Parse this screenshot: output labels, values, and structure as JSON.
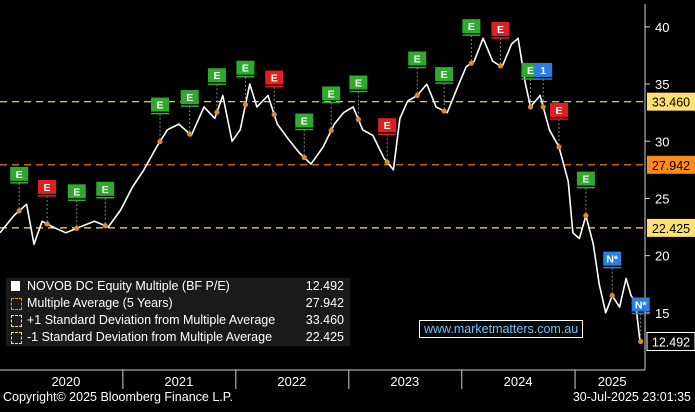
{
  "chart_data": {
    "type": "line",
    "title": "",
    "xlabel": "",
    "ylabel": "",
    "ylim": [
      10,
      42
    ],
    "y_ticks": [
      15,
      20,
      25,
      30,
      35,
      40
    ],
    "x_range": [
      "2019-12-01",
      "2025-08-15"
    ],
    "x_tick_labels": [
      {
        "label": "2020",
        "date": "2020-07-01"
      },
      {
        "label": "2021",
        "date": "2021-07-01"
      },
      {
        "label": "2022",
        "date": "2022-07-01"
      },
      {
        "label": "2023",
        "date": "2023-07-01"
      },
      {
        "label": "2024",
        "date": "2024-07-01"
      },
      {
        "label": "2025",
        "date": "2025-05-01"
      }
    ],
    "year_boundaries": [
      "2021-01-01",
      "2022-01-01",
      "2023-01-01",
      "2024-01-01",
      "2025-01-01"
    ],
    "grid": false,
    "legend_position": "bottom-left",
    "series": [
      {
        "name": "NOVOB DC Equity Multiple (BF P/E)",
        "color": "#ffffff",
        "last_value": "12.492",
        "points": [
          [
            "2019-12-01",
            22.0
          ],
          [
            "2020-01-15",
            23.5
          ],
          [
            "2020-02-25",
            24.5
          ],
          [
            "2020-03-20",
            21.0
          ],
          [
            "2020-04-15",
            23.0
          ],
          [
            "2020-05-20",
            22.5
          ],
          [
            "2020-07-01",
            22.0
          ],
          [
            "2020-08-15",
            22.5
          ],
          [
            "2020-10-01",
            23.0
          ],
          [
            "2020-11-15",
            22.5
          ],
          [
            "2020-12-25",
            24.0
          ],
          [
            "2021-02-01",
            26.0
          ],
          [
            "2021-03-10",
            27.5
          ],
          [
            "2021-04-20",
            29.5
          ],
          [
            "2021-05-25",
            31.0
          ],
          [
            "2021-07-01",
            31.5
          ],
          [
            "2021-08-10",
            30.5
          ],
          [
            "2021-09-20",
            33.0
          ],
          [
            "2021-10-25",
            32.0
          ],
          [
            "2021-11-20",
            34.0
          ],
          [
            "2021-12-20",
            30.0
          ],
          [
            "2022-01-15",
            31.0
          ],
          [
            "2022-02-15",
            35.0
          ],
          [
            "2022-03-10",
            33.0
          ],
          [
            "2022-04-15",
            34.0
          ],
          [
            "2022-05-15",
            31.5
          ],
          [
            "2022-06-25",
            30.0
          ],
          [
            "2022-07-25",
            29.0
          ],
          [
            "2022-09-01",
            28.0
          ],
          [
            "2022-10-10",
            29.5
          ],
          [
            "2022-11-15",
            31.5
          ],
          [
            "2022-12-15",
            32.5
          ],
          [
            "2023-01-15",
            33.0
          ],
          [
            "2023-02-15",
            31.0
          ],
          [
            "2023-03-20",
            30.5
          ],
          [
            "2023-04-25",
            28.5
          ],
          [
            "2023-05-25",
            27.5
          ],
          [
            "2023-06-15",
            32.0
          ],
          [
            "2023-07-10",
            33.5
          ],
          [
            "2023-08-10",
            34.0
          ],
          [
            "2023-09-10",
            35.0
          ],
          [
            "2023-10-10",
            33.0
          ],
          [
            "2023-11-15",
            32.5
          ],
          [
            "2023-12-15",
            34.5
          ],
          [
            "2024-01-15",
            36.5
          ],
          [
            "2024-02-10",
            37.0
          ],
          [
            "2024-03-10",
            39.0
          ],
          [
            "2024-04-10",
            37.0
          ],
          [
            "2024-05-10",
            36.5
          ],
          [
            "2024-06-10",
            38.5
          ],
          [
            "2024-07-01",
            39.0
          ],
          [
            "2024-07-25",
            35.0
          ],
          [
            "2024-08-10",
            33.0
          ],
          [
            "2024-09-10",
            34.0
          ],
          [
            "2024-10-10",
            31.0
          ],
          [
            "2024-11-10",
            29.5
          ],
          [
            "2024-12-10",
            26.5
          ],
          [
            "2024-12-25",
            22.0
          ],
          [
            "2025-01-15",
            21.5
          ],
          [
            "2025-02-05",
            23.5
          ],
          [
            "2025-03-01",
            21.0
          ],
          [
            "2025-03-20",
            17.5
          ],
          [
            "2025-04-10",
            15.0
          ],
          [
            "2025-05-01",
            16.5
          ],
          [
            "2025-05-25",
            15.5
          ],
          [
            "2025-06-15",
            18.0
          ],
          [
            "2025-07-01",
            16.5
          ],
          [
            "2025-07-15",
            16.0
          ],
          [
            "2025-07-30",
            12.492
          ]
        ]
      },
      {
        "name": "Multiple Average (5 Years)",
        "color": "#ff8a1c",
        "value": 27.942,
        "value_label": "27.942"
      },
      {
        "name": "+1 Standard Deviation from Multiple Average",
        "color": "#ffe070",
        "value": 33.46,
        "value_label": "33.460"
      },
      {
        "name": "-1 Standard Deviation from Multiple Average",
        "color": "#ffe070",
        "value": 22.425,
        "value_label": "22.425"
      }
    ],
    "event_markers": [
      {
        "label": "E",
        "color": "#2faa2f",
        "date": "2020-02-01"
      },
      {
        "label": "E",
        "color": "#e02020",
        "date": "2020-05-01"
      },
      {
        "label": "E",
        "color": "#2faa2f",
        "date": "2020-08-05"
      },
      {
        "label": "E",
        "color": "#2faa2f",
        "date": "2020-11-05"
      },
      {
        "label": "E",
        "color": "#2faa2f",
        "date": "2021-05-01"
      },
      {
        "label": "E",
        "color": "#2faa2f",
        "date": "2021-08-05"
      },
      {
        "label": "E",
        "color": "#2faa2f",
        "date": "2021-11-01"
      },
      {
        "label": "E",
        "color": "#2faa2f",
        "date": "2022-02-01"
      },
      {
        "label": "E",
        "color": "#e02020",
        "date": "2022-05-05"
      },
      {
        "label": "E",
        "color": "#2faa2f",
        "date": "2022-08-10"
      },
      {
        "label": "E",
        "color": "#2faa2f",
        "date": "2022-11-05"
      },
      {
        "label": "E",
        "color": "#2faa2f",
        "date": "2023-02-01"
      },
      {
        "label": "E",
        "color": "#e02020",
        "date": "2023-05-05"
      },
      {
        "label": "E",
        "color": "#2faa2f",
        "date": "2023-08-10"
      },
      {
        "label": "E",
        "color": "#2faa2f",
        "date": "2023-11-05"
      },
      {
        "label": "E",
        "color": "#2faa2f",
        "date": "2024-02-01"
      },
      {
        "label": "E",
        "color": "#e02020",
        "date": "2024-05-05"
      },
      {
        "label": "E",
        "color": "#2faa2f",
        "date": "2024-08-10"
      },
      {
        "label": "1",
        "color": "#2a7fe0",
        "date": "2024-09-20"
      },
      {
        "label": "E",
        "color": "#e02020",
        "date": "2024-11-10"
      },
      {
        "label": "E",
        "color": "#2faa2f",
        "date": "2025-02-05"
      },
      {
        "label": "N*",
        "color": "#2a7fe0",
        "date": "2025-05-01"
      },
      {
        "label": "N*",
        "color": "#2a7fe0",
        "date": "2025-08-01"
      }
    ]
  },
  "legend": {
    "items": [
      {
        "label": "NOVOB DC Equity Multiple (BF P/E)",
        "value": "12.492",
        "color": "#ffffff",
        "style": "solid"
      },
      {
        "label": "Multiple Average (5 Years)",
        "value": "27.942",
        "color": "#ff8a1c",
        "style": "dashed"
      },
      {
        "label": "+1 Standard Deviation from Multiple Average",
        "value": "33.460",
        "color": "#ffe070",
        "style": "dashed"
      },
      {
        "label": "-1 Standard Deviation from Multiple Average",
        "value": "22.425",
        "color": "#ffe070",
        "style": "dashed"
      }
    ]
  },
  "source": {
    "text": "www.marketmatters.com.au"
  },
  "footer": {
    "copyright": "Copyright© 2025 Bloomberg Finance L.P.",
    "timestamp": "30-Jul-2025 23:01:35"
  }
}
